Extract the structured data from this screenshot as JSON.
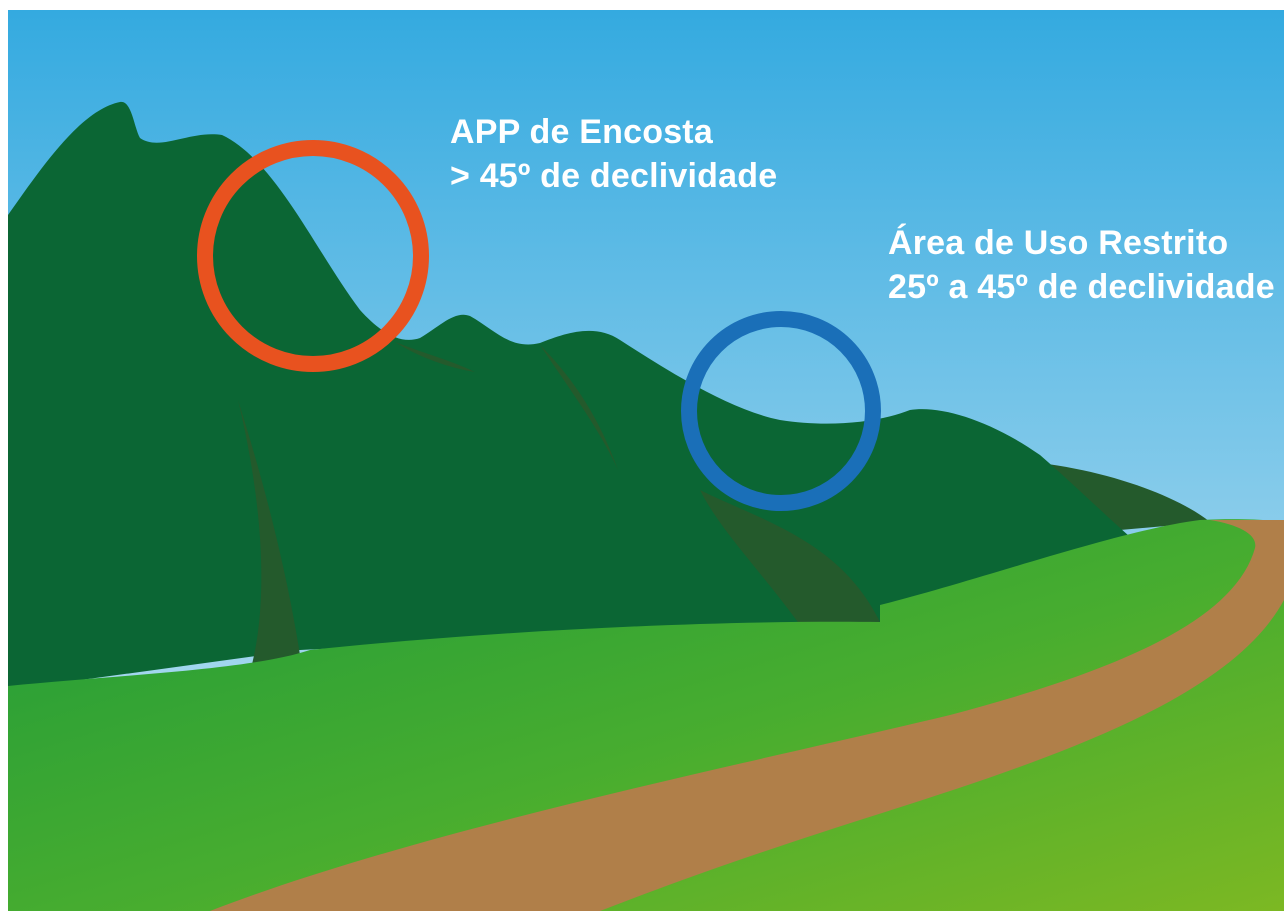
{
  "colors": {
    "sky_top": "#34aae0",
    "sky_bottom": "#c9e6f3",
    "mountain": "#0b6634",
    "mountain_shadow": "#245a2c",
    "grass_light": "#7cb823",
    "grass_dark": "#1e9a3a",
    "path": "#b07f49",
    "steep_circle": "#e8521f",
    "moderate_circle": "#1a6fb8"
  },
  "annotations": {
    "steep": {
      "title": "APP de Encosta",
      "subtitle": "> 45º de declividade"
    },
    "moderate": {
      "title": "Área de Uso Restrito",
      "subtitle": "25º a 45º de declividade"
    }
  }
}
